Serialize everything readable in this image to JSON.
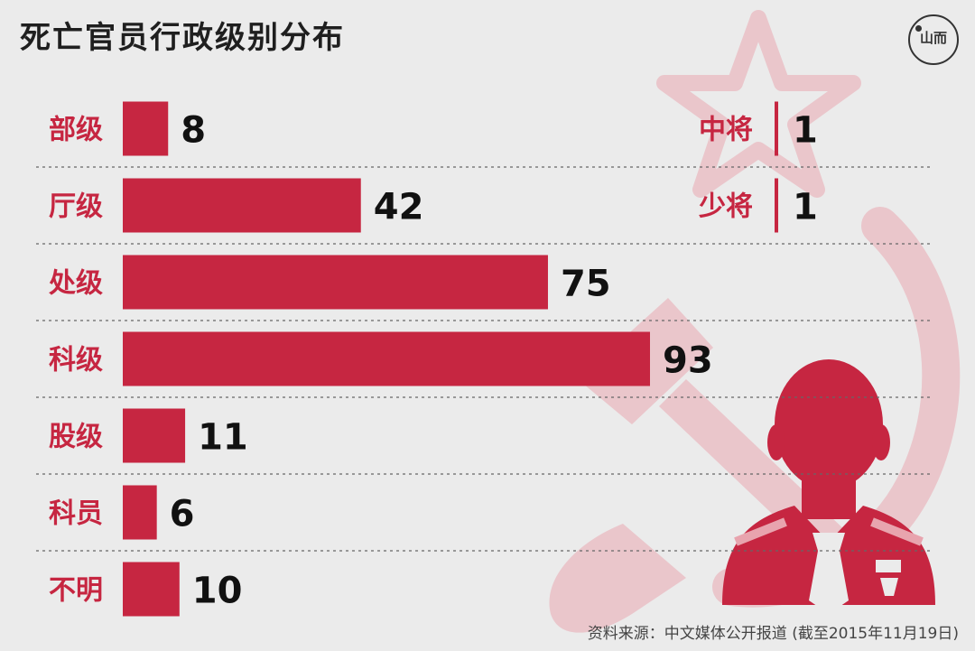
{
  "title": "死亡官员行政级别分布",
  "logo": {
    "text": "山而",
    "icon": "thepaper-logo-icon"
  },
  "source": "资料来源：中文媒体公开报道 (截至2015年11月19日)",
  "colors": {
    "accent": "#c62641",
    "background": "#ebebeb",
    "emblem": "#eac6cb"
  },
  "chart_data": {
    "type": "bar",
    "orientation": "horizontal",
    "title": "死亡官员行政级别分布",
    "categories": [
      "部级",
      "厅级",
      "处级",
      "科级",
      "股级",
      "科员",
      "不明"
    ],
    "values": [
      8,
      42,
      75,
      93,
      11,
      6,
      10
    ],
    "xlim": [
      0,
      93
    ],
    "grid": false,
    "separators": "dashed",
    "side_panel": {
      "items": [
        {
          "label": "中将",
          "value": 1
        },
        {
          "label": "少将",
          "value": 1
        }
      ]
    }
  }
}
